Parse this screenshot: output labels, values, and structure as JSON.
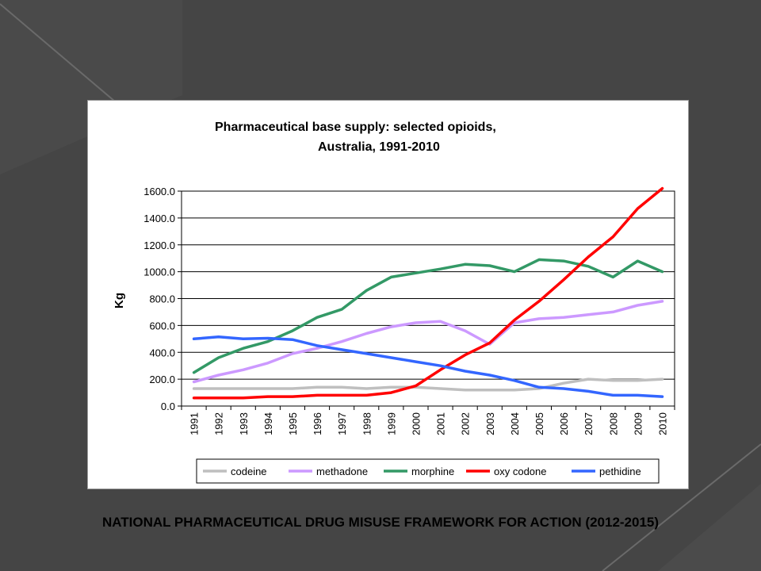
{
  "slide": {
    "footer": "NATIONAL PHARMACEUTICAL DRUG MISUSE FRAMEWORK FOR ACTION (2012-2015)",
    "background_color": "#454545"
  },
  "chart_data": {
    "type": "line",
    "title_lines": [
      "Pharmaceutical base supply: selected opioids,",
      "Australia, 1991-2010"
    ],
    "xlabel": "",
    "ylabel": "Kg",
    "ylim": [
      0,
      1600
    ],
    "y_ticks": [
      "0.0",
      "200.0",
      "400.0",
      "600.0",
      "800.0",
      "1000.0",
      "1200.0",
      "1400.0",
      "1600.0"
    ],
    "grid": true,
    "legend_position": "bottom",
    "categories": [
      "1991",
      "1992",
      "1993",
      "1994",
      "1995",
      "1996",
      "1997",
      "1998",
      "1999",
      "2000",
      "2001",
      "2002",
      "2003",
      "2004",
      "2005",
      "2006",
      "2007",
      "2008",
      "2009",
      "2010"
    ],
    "series": [
      {
        "name": "codeine",
        "color": "#bfbfbf",
        "values": [
          130,
          130,
          130,
          130,
          130,
          140,
          140,
          130,
          140,
          140,
          130,
          120,
          120,
          120,
          130,
          170,
          200,
          190,
          190,
          200
        ]
      },
      {
        "name": "methadone",
        "color": "#cc99ff",
        "values": [
          180,
          230,
          270,
          320,
          390,
          430,
          480,
          540,
          590,
          620,
          630,
          560,
          460,
          620,
          650,
          660,
          680,
          700,
          750,
          780
        ]
      },
      {
        "name": "morphine",
        "color": "#339966",
        "values": [
          250,
          360,
          430,
          480,
          560,
          660,
          720,
          860,
          960,
          990,
          1020,
          1055,
          1045,
          1000,
          1090,
          1080,
          1040,
          960,
          1080,
          1000
        ]
      },
      {
        "name": "oxy codone",
        "color": "#ff0000",
        "values": [
          60,
          60,
          60,
          70,
          70,
          80,
          80,
          80,
          100,
          150,
          270,
          380,
          470,
          640,
          780,
          940,
          1110,
          1260,
          1470,
          1620
        ]
      },
      {
        "name": "pethidine",
        "color": "#3366ff",
        "values": [
          500,
          515,
          500,
          505,
          495,
          450,
          420,
          390,
          360,
          330,
          300,
          260,
          230,
          190,
          140,
          130,
          110,
          80,
          80,
          70
        ]
      }
    ]
  }
}
